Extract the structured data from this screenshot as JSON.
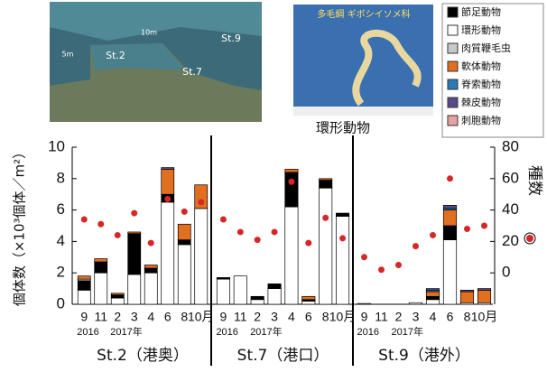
{
  "chart_data": {
    "type": "bar",
    "stacked": true,
    "ylabel": "個体数（×10³個体／m²）",
    "y2label": "種数",
    "ylim": [
      0,
      10
    ],
    "yticks": [
      0,
      2,
      4,
      6,
      8,
      10
    ],
    "y2lim": [
      -20,
      80
    ],
    "y2ticks": [
      0,
      20,
      40,
      60,
      80
    ],
    "species_color": "#d62728",
    "series": [
      {
        "name": "節足動物",
        "color": "#000000"
      },
      {
        "name": "環形動物",
        "color": "#ffffff"
      },
      {
        "name": "肉質鞭毛虫",
        "color": "#c8c8c8"
      },
      {
        "name": "軟体動物",
        "color": "#e07020"
      },
      {
        "name": "脊索動物",
        "color": "#2a7ab8"
      },
      {
        "name": "棘皮動物",
        "color": "#5a4a8a"
      },
      {
        "name": "刺胞動物",
        "color": "#e8a0a0"
      }
    ],
    "panels": [
      {
        "title": "St.2（港奥）",
        "categories": [
          "9",
          "11",
          "2",
          "3",
          "4",
          "6",
          "8",
          "10月"
        ],
        "years": [
          "2016",
          "2017年"
        ],
        "values": [
          [
            0.6,
            0.7,
            0.2,
            2.6,
            0.3,
            0.5,
            0.3,
            0
          ],
          [
            0.9,
            2.0,
            0.4,
            1.9,
            2.0,
            6.5,
            3.8,
            6.1
          ],
          [
            0.1,
            0,
            0,
            0,
            0,
            0,
            0,
            0
          ],
          [
            0.2,
            0.2,
            0.1,
            0.1,
            0.2,
            1.6,
            1.0,
            1.5
          ],
          [
            0,
            0,
            0,
            0,
            0,
            0,
            0,
            0
          ],
          [
            0,
            0,
            0,
            0,
            0,
            0.1,
            0,
            0
          ],
          [
            0,
            0,
            0,
            0,
            0,
            0,
            0,
            0
          ]
        ],
        "species": [
          34,
          31,
          24,
          38,
          19,
          47,
          39,
          45
        ]
      },
      {
        "title": "St.7（港口）",
        "categories": [
          "9",
          "11",
          "2",
          "3",
          "4",
          "6",
          "8",
          "10月"
        ],
        "years": [
          "2016",
          "2017年"
        ],
        "values": [
          [
            0.1,
            0,
            0.2,
            0.3,
            2.2,
            0.1,
            0.5,
            0.2
          ],
          [
            1.6,
            1.8,
            0.3,
            1.0,
            6.2,
            0.2,
            7.4,
            5.6
          ],
          [
            0,
            0,
            0,
            0,
            0,
            0,
            0,
            0
          ],
          [
            0,
            0,
            0,
            0,
            0.2,
            0.2,
            0.1,
            0
          ],
          [
            0,
            0,
            0,
            0,
            0,
            0,
            0,
            0
          ],
          [
            0,
            0,
            0,
            0,
            0,
            0,
            0,
            0
          ],
          [
            0,
            0,
            0,
            0,
            0,
            0,
            0,
            0
          ]
        ],
        "species": [
          34,
          26,
          21,
          26,
          58,
          19,
          35,
          22
        ]
      },
      {
        "title": "St.9（港外）",
        "categories": [
          "9",
          "11",
          "2",
          "3",
          "4",
          "6",
          "8",
          "10月"
        ],
        "years": [
          "2016",
          "2017年"
        ],
        "values": [
          [
            0,
            0,
            0,
            0,
            0.2,
            0.9,
            0,
            0
          ],
          [
            0.05,
            0,
            0,
            0.1,
            0.3,
            4.1,
            0.1,
            0.1
          ],
          [
            0,
            0,
            0,
            0,
            0,
            0,
            0,
            0
          ],
          [
            0,
            0,
            0,
            0,
            0.3,
            1.0,
            0.7,
            0.8
          ],
          [
            0,
            0,
            0,
            0,
            0.1,
            0.1,
            0,
            0
          ],
          [
            0,
            0,
            0,
            0,
            0.1,
            0.2,
            0.1,
            0.1
          ],
          [
            0,
            0,
            0,
            0,
            0,
            0,
            0,
            0
          ]
        ],
        "species": [
          10,
          2,
          5,
          17,
          24,
          60,
          28,
          30
        ]
      }
    ]
  },
  "photos": {
    "map_labels": [
      "10m",
      "5m",
      "St.2",
      "St.7",
      "St.9"
    ],
    "worm_label": "多毛綱 ギボシイソメ科",
    "worm_caption": "環形動物"
  }
}
